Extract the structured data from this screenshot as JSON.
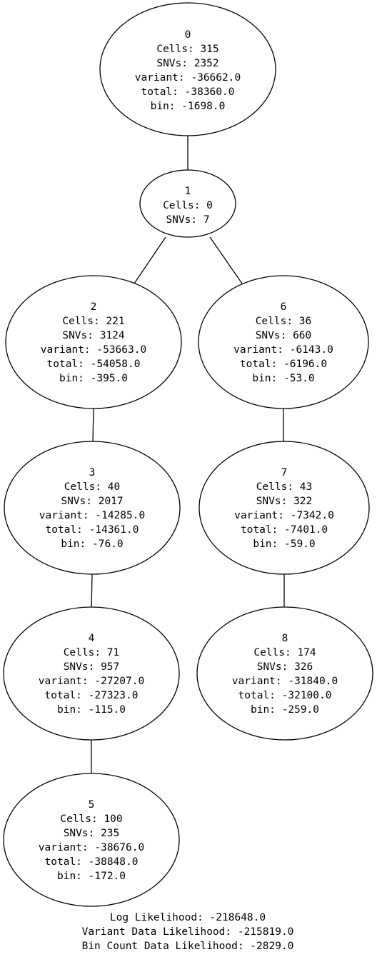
{
  "tree": {
    "nodes": [
      {
        "id": "0",
        "cells": "Cells: 315",
        "snvs": "SNVs: 2352",
        "variant": "variant: -36662.0",
        "total": "total: -38360.0",
        "bin": "bin: -1698.0"
      },
      {
        "id": "1",
        "cells": "Cells: 0",
        "snvs": "SNVs: 7"
      },
      {
        "id": "2",
        "cells": "Cells: 221",
        "snvs": "SNVs: 3124",
        "variant": "variant: -53663.0",
        "total": "total: -54058.0",
        "bin": "bin: -395.0"
      },
      {
        "id": "3",
        "cells": "Cells: 40",
        "snvs": "SNVs: 2017",
        "variant": "variant: -14285.0",
        "total": "total: -14361.0",
        "bin": "bin: -76.0"
      },
      {
        "id": "4",
        "cells": "Cells: 71",
        "snvs": "SNVs: 957",
        "variant": "variant: -27207.0",
        "total": "total: -27323.0",
        "bin": "bin: -115.0"
      },
      {
        "id": "5",
        "cells": "Cells: 100",
        "snvs": "SNVs: 235",
        "variant": "variant: -38676.0",
        "total": "total: -38848.0",
        "bin": "bin: -172.0"
      },
      {
        "id": "6",
        "cells": "Cells: 36",
        "snvs": "SNVs: 660",
        "variant": "variant: -6143.0",
        "total": "total: -6196.0",
        "bin": "bin: -53.0"
      },
      {
        "id": "7",
        "cells": "Cells: 43",
        "snvs": "SNVs: 322",
        "variant": "variant: -7342.0",
        "total": "total: -7401.0",
        "bin": "bin: -59.0"
      },
      {
        "id": "8",
        "cells": "Cells: 174",
        "snvs": "SNVs: 326",
        "variant": "variant: -31840.0",
        "total": "total: -32100.0",
        "bin": "bin: -259.0"
      }
    ],
    "edges": [
      [
        "0",
        "1"
      ],
      [
        "1",
        "2"
      ],
      [
        "1",
        "6"
      ],
      [
        "2",
        "3"
      ],
      [
        "3",
        "4"
      ],
      [
        "4",
        "5"
      ],
      [
        "6",
        "7"
      ],
      [
        "7",
        "8"
      ]
    ]
  },
  "summary": {
    "log_likelihood": "Log Likelihood: -218648.0",
    "variant_likelihood": "Variant Data Likelihood: -215819.0",
    "bin_count_likelihood": "Bin Count Data Likelihood: -2829.0"
  }
}
